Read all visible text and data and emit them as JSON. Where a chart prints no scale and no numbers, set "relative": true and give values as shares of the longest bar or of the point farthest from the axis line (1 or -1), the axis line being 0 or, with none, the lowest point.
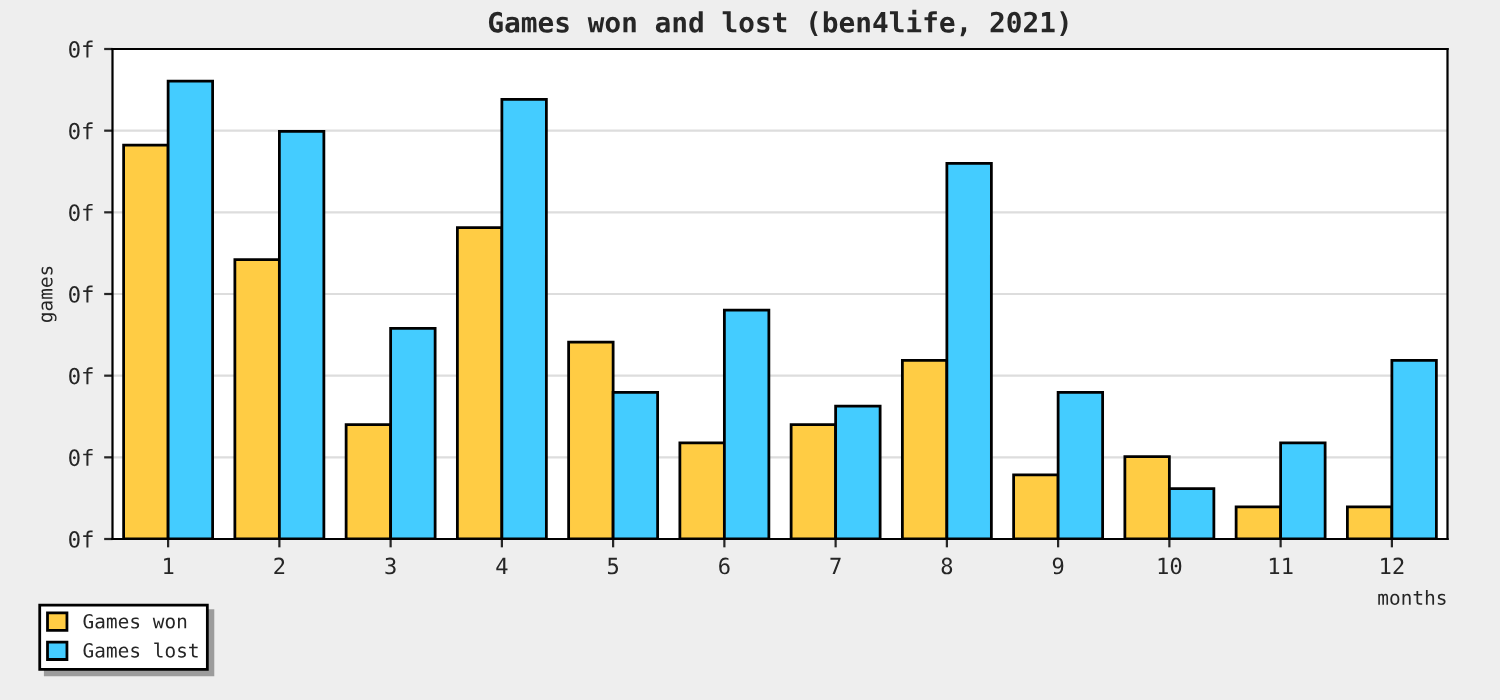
{
  "chart_data": {
    "type": "bar",
    "title": "Games won and lost (ben4life, 2021)",
    "xlabel": "months",
    "ylabel": "games",
    "categories": [
      "1",
      "2",
      "3",
      "4",
      "5",
      "6",
      "7",
      "8",
      "9",
      "10",
      "11",
      "12"
    ],
    "relative": true,
    "series": [
      {
        "name": "Games won",
        "color": "#ffcc44",
        "values": [
          0.86,
          0.61,
          0.25,
          0.68,
          0.43,
          0.21,
          0.25,
          0.39,
          0.14,
          0.18,
          0.07,
          0.07
        ]
      },
      {
        "name": "Games lost",
        "color": "#44ccff",
        "values": [
          1,
          0.89,
          0.46,
          0.96,
          0.32,
          0.5,
          0.29,
          0.82,
          0.32,
          0.11,
          0.21,
          0.39
        ]
      }
    ],
    "annotations": [
      "0f",
      "0f",
      "0f",
      "0f",
      "0f",
      "0f",
      "0f"
    ],
    "grid": "y",
    "legend": "bottom left"
  }
}
